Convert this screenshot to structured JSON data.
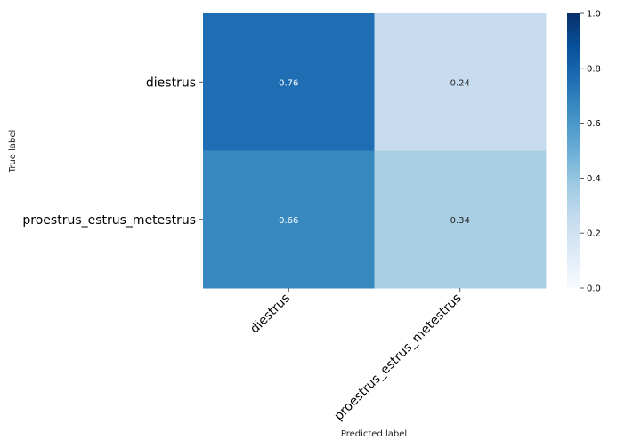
{
  "chart_data": {
    "type": "heatmap",
    "title": "",
    "xlabel": "Predicted label",
    "ylabel": "True label",
    "x_categories": [
      "diestrus",
      "proestrus_estrus_metestrus"
    ],
    "y_categories": [
      "diestrus",
      "proestrus_estrus_metestrus"
    ],
    "values": [
      [
        0.76,
        0.24
      ],
      [
        0.66,
        0.34
      ]
    ],
    "value_labels": [
      [
        "0.76",
        "0.24"
      ],
      [
        "0.66",
        "0.34"
      ]
    ],
    "colorbar": {
      "range": [
        0.0,
        1.0
      ],
      "ticks": [
        0.0,
        0.2,
        0.4,
        0.6,
        0.8,
        1.0
      ],
      "tick_labels": [
        "0.0",
        "0.2",
        "0.4",
        "0.6",
        "0.8",
        "1.0"
      ],
      "colormap": "Blues"
    }
  }
}
